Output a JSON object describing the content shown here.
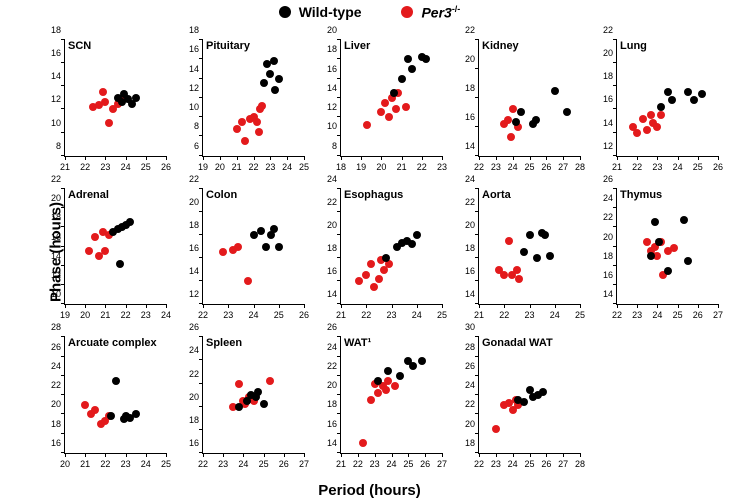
{
  "legend": {
    "wt": {
      "label": "Wild-type",
      "color": "#000000"
    },
    "per3": {
      "label_html": "<i>Per3</i><sup>-/-</sup>",
      "color": "#e31a1c"
    }
  },
  "axis_labels": {
    "x": "Period (hours)",
    "y": "Phase (hours)"
  },
  "global_style": {
    "axis_color": "#000000",
    "tick_fontsize": 9,
    "panel_name_fontsize": 11,
    "axis_label_fontsize": 15,
    "background": "#ffffff",
    "dot_radius": 4
  },
  "panels": [
    {
      "name": "SCN",
      "xlim": [
        21,
        26
      ],
      "ylim": [
        8,
        18
      ],
      "xtick_step": 1,
      "ytick_step": 2,
      "points": {
        "wt": [
          [
            23.6,
            13.0
          ],
          [
            23.8,
            12.6
          ],
          [
            24.1,
            12.9
          ],
          [
            24.3,
            12.5
          ],
          [
            23.9,
            13.3
          ],
          [
            24.5,
            13.0
          ]
        ],
        "per3": [
          [
            22.4,
            12.2
          ],
          [
            22.7,
            12.4
          ],
          [
            23.0,
            12.6
          ],
          [
            23.2,
            10.8
          ],
          [
            23.4,
            12.0
          ],
          [
            22.9,
            13.5
          ],
          [
            23.6,
            12.5
          ],
          [
            23.8,
            12.8
          ]
        ]
      }
    },
    {
      "name": "Pituitary",
      "xlim": [
        19,
        25
      ],
      "ylim": [
        6,
        18
      ],
      "xtick_step": 1,
      "ytick_step": 2,
      "points": {
        "wt": [
          [
            22.6,
            13.5
          ],
          [
            22.8,
            15.5
          ],
          [
            23.0,
            14.5
          ],
          [
            23.2,
            15.8
          ],
          [
            23.3,
            12.8
          ],
          [
            23.5,
            14.0
          ]
        ],
        "per3": [
          [
            21.0,
            8.8
          ],
          [
            21.3,
            9.5
          ],
          [
            21.5,
            7.5
          ],
          [
            21.8,
            9.8
          ],
          [
            22.0,
            10.0
          ],
          [
            22.2,
            9.5
          ],
          [
            22.3,
            8.5
          ],
          [
            22.4,
            10.8
          ],
          [
            22.5,
            11.2
          ]
        ]
      }
    },
    {
      "name": "Liver",
      "xlim": [
        18,
        23
      ],
      "ylim": [
        8,
        20
      ],
      "xtick_step": 1,
      "ytick_step": 2,
      "points": {
        "wt": [
          [
            20.6,
            14.5
          ],
          [
            21.0,
            16.0
          ],
          [
            21.3,
            18.0
          ],
          [
            21.5,
            17.0
          ],
          [
            22.0,
            18.2
          ],
          [
            22.2,
            18.0
          ]
        ],
        "per3": [
          [
            19.3,
            11.2
          ],
          [
            20.0,
            12.5
          ],
          [
            20.2,
            13.5
          ],
          [
            20.4,
            12.0
          ],
          [
            20.5,
            14.0
          ],
          [
            20.7,
            12.8
          ],
          [
            20.8,
            14.5
          ],
          [
            21.2,
            13.0
          ]
        ]
      }
    },
    {
      "name": "Kidney",
      "xlim": [
        22,
        28
      ],
      "ylim": [
        14,
        22
      ],
      "xtick_step": 1,
      "ytick_step": 2,
      "points": {
        "wt": [
          [
            24.2,
            16.3
          ],
          [
            24.5,
            17.0
          ],
          [
            25.2,
            16.2
          ],
          [
            25.4,
            16.5
          ],
          [
            26.5,
            18.5
          ],
          [
            27.2,
            17.0
          ]
        ],
        "per3": [
          [
            23.5,
            16.2
          ],
          [
            23.7,
            16.5
          ],
          [
            23.9,
            15.3
          ],
          [
            24.0,
            17.2
          ],
          [
            24.3,
            16.0
          ]
        ]
      }
    },
    {
      "name": "Lung",
      "xlim": [
        21,
        26
      ],
      "ylim": [
        12,
        22
      ],
      "xtick_step": 1,
      "ytick_step": 2,
      "points": {
        "wt": [
          [
            23.2,
            16.2
          ],
          [
            23.5,
            17.5
          ],
          [
            23.7,
            16.8
          ],
          [
            24.5,
            17.5
          ],
          [
            24.8,
            16.8
          ],
          [
            25.2,
            17.3
          ]
        ],
        "per3": [
          [
            21.8,
            14.5
          ],
          [
            22.0,
            14.0
          ],
          [
            22.3,
            15.2
          ],
          [
            22.5,
            14.2
          ],
          [
            22.7,
            15.5
          ],
          [
            22.8,
            14.8
          ],
          [
            23.0,
            14.5
          ],
          [
            23.2,
            15.5
          ]
        ]
      }
    },
    {
      "name": "Adrenal",
      "xlim": [
        19,
        24
      ],
      "ylim": [
        10,
        22
      ],
      "xtick_step": 1,
      "ytick_step": 2,
      "points": {
        "wt": [
          [
            21.4,
            17.5
          ],
          [
            21.6,
            17.8
          ],
          [
            21.8,
            18.0
          ],
          [
            22.0,
            18.2
          ],
          [
            21.7,
            14.2
          ],
          [
            22.2,
            18.5
          ]
        ],
        "per3": [
          [
            20.2,
            15.5
          ],
          [
            20.5,
            17.0
          ],
          [
            20.7,
            15.0
          ],
          [
            20.9,
            17.5
          ],
          [
            21.0,
            15.5
          ],
          [
            21.2,
            17.2
          ]
        ]
      }
    },
    {
      "name": "Colon",
      "xlim": [
        22,
        26
      ],
      "ylim": [
        12,
        22
      ],
      "xtick_step": 1,
      "ytick_step": 2,
      "points": {
        "wt": [
          [
            24.0,
            18.0
          ],
          [
            24.3,
            18.3
          ],
          [
            24.5,
            17.0
          ],
          [
            24.7,
            18.0
          ],
          [
            24.8,
            18.5
          ],
          [
            25.0,
            17.0
          ]
        ],
        "per3": [
          [
            22.8,
            16.5
          ],
          [
            23.2,
            16.7
          ],
          [
            23.4,
            17.0
          ],
          [
            23.8,
            14.0
          ]
        ]
      }
    },
    {
      "name": "Esophagus",
      "xlim": [
        21,
        25
      ],
      "ylim": [
        14,
        24
      ],
      "xtick_step": 1,
      "ytick_step": 2,
      "points": {
        "wt": [
          [
            22.8,
            18.0
          ],
          [
            23.2,
            19.0
          ],
          [
            23.4,
            19.3
          ],
          [
            23.6,
            19.5
          ],
          [
            23.8,
            19.2
          ],
          [
            24.0,
            20.0
          ]
        ],
        "per3": [
          [
            21.7,
            16.0
          ],
          [
            22.0,
            16.5
          ],
          [
            22.2,
            17.5
          ],
          [
            22.3,
            15.5
          ],
          [
            22.5,
            16.2
          ],
          [
            22.6,
            17.8
          ],
          [
            22.7,
            17.0
          ],
          [
            22.9,
            17.5
          ]
        ]
      }
    },
    {
      "name": "Aorta",
      "xlim": [
        21,
        25
      ],
      "ylim": [
        14,
        24
      ],
      "xtick_step": 1,
      "ytick_step": 2,
      "points": {
        "wt": [
          [
            22.8,
            18.5
          ],
          [
            23.0,
            20.0
          ],
          [
            23.3,
            18.0
          ],
          [
            23.5,
            20.2
          ],
          [
            23.6,
            20.0
          ],
          [
            23.8,
            18.2
          ]
        ],
        "per3": [
          [
            21.8,
            17.0
          ],
          [
            22.0,
            16.5
          ],
          [
            22.2,
            19.5
          ],
          [
            22.3,
            16.5
          ],
          [
            22.5,
            17.0
          ],
          [
            22.6,
            16.2
          ]
        ]
      }
    },
    {
      "name": "Thymus",
      "xlim": [
        22,
        27
      ],
      "ylim": [
        14,
        26
      ],
      "xtick_step": 1,
      "ytick_step": 2,
      "points": {
        "wt": [
          [
            23.7,
            19.0
          ],
          [
            23.9,
            22.5
          ],
          [
            24.1,
            20.5
          ],
          [
            24.5,
            17.5
          ],
          [
            25.3,
            22.8
          ],
          [
            25.5,
            18.5
          ]
        ],
        "per3": [
          [
            23.5,
            20.5
          ],
          [
            23.7,
            19.5
          ],
          [
            23.9,
            20.0
          ],
          [
            24.0,
            19.0
          ],
          [
            24.2,
            20.5
          ],
          [
            24.3,
            17.0
          ],
          [
            24.5,
            19.5
          ],
          [
            24.8,
            19.8
          ]
        ]
      }
    },
    {
      "name": "Arcuate complex",
      "xlim": [
        20,
        25
      ],
      "ylim": [
        16,
        28
      ],
      "xtick_step": 1,
      "ytick_step": 2,
      "points": {
        "wt": [
          [
            22.3,
            19.8
          ],
          [
            22.5,
            23.5
          ],
          [
            22.9,
            19.5
          ],
          [
            23.0,
            19.8
          ],
          [
            23.2,
            19.6
          ],
          [
            23.5,
            20.0
          ]
        ],
        "per3": [
          [
            21.0,
            21.0
          ],
          [
            21.3,
            20.0
          ],
          [
            21.5,
            20.5
          ],
          [
            21.8,
            19.0
          ],
          [
            22.0,
            19.3
          ],
          [
            22.2,
            19.8
          ]
        ]
      }
    },
    {
      "name": "Spleen",
      "xlim": [
        22,
        27
      ],
      "ylim": [
        16,
        26
      ],
      "xtick_step": 1,
      "ytick_step": 2,
      "points": {
        "wt": [
          [
            23.8,
            20.0
          ],
          [
            24.2,
            20.5
          ],
          [
            24.4,
            21.0
          ],
          [
            24.6,
            20.8
          ],
          [
            24.7,
            21.3
          ],
          [
            25.0,
            20.2
          ]
        ],
        "per3": [
          [
            23.5,
            20.0
          ],
          [
            23.8,
            22.0
          ],
          [
            24.0,
            20.5
          ],
          [
            24.1,
            20.2
          ],
          [
            24.3,
            20.8
          ],
          [
            24.5,
            20.5
          ],
          [
            25.3,
            22.2
          ]
        ]
      }
    },
    {
      "name": "WAT¹",
      "xlim": [
        21,
        27
      ],
      "ylim": [
        14,
        26
      ],
      "xtick_step": 1,
      "ytick_step": 2,
      "points": {
        "wt": [
          [
            23.2,
            21.5
          ],
          [
            23.8,
            22.5
          ],
          [
            24.5,
            22.0
          ],
          [
            25.0,
            23.5
          ],
          [
            25.3,
            23.0
          ],
          [
            25.8,
            23.5
          ]
        ],
        "per3": [
          [
            22.3,
            15.0
          ],
          [
            22.8,
            19.5
          ],
          [
            23.0,
            21.2
          ],
          [
            23.2,
            20.2
          ],
          [
            23.5,
            21.0
          ],
          [
            23.7,
            20.5
          ],
          [
            23.8,
            21.5
          ],
          [
            24.2,
            21.0
          ]
        ]
      }
    },
    {
      "name": "Gonadal WAT",
      "xlim": [
        22,
        28
      ],
      "ylim": [
        18,
        30
      ],
      "xtick_step": 1,
      "ytick_step": 2,
      "points": {
        "wt": [
          [
            24.3,
            23.5
          ],
          [
            24.7,
            23.3
          ],
          [
            25.0,
            24.5
          ],
          [
            25.2,
            23.8
          ],
          [
            25.5,
            24.0
          ],
          [
            25.8,
            24.3
          ]
        ],
        "per3": [
          [
            23.0,
            20.5
          ],
          [
            23.5,
            23.0
          ],
          [
            23.8,
            23.2
          ],
          [
            24.0,
            22.5
          ],
          [
            24.2,
            23.5
          ],
          [
            24.3,
            23.0
          ]
        ]
      }
    }
  ]
}
